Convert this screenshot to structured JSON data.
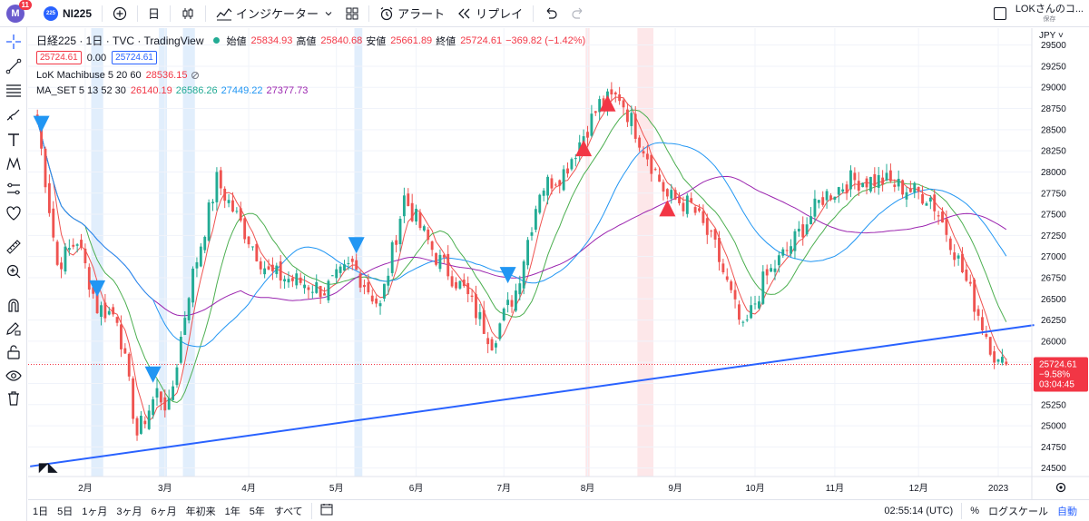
{
  "topbar": {
    "avatar_letter": "M",
    "notification_count": "11",
    "symbol_logo": "225",
    "symbol": "NI225",
    "interval": "日",
    "indicators_label": "インジケーター",
    "alert_label": "アラート",
    "replay_label": "リプレイ",
    "layout_name": "LOKさんのコ...",
    "layout_save": "保存"
  },
  "legend": {
    "title": "日経225 · 1日 · TVC · TradingView",
    "open_label": "始値",
    "open": "25834.93",
    "high_label": "高値",
    "high": "25840.68",
    "low_label": "安値",
    "low": "25661.89",
    "close_label": "終値",
    "close": "25724.61",
    "change": "−369.82 (−1.42%)",
    "bid": "25724.61",
    "spread": "0.00",
    "ask": "25724.61",
    "ind1_name": "LoK Machibuse 5 20 60",
    "ind1_value": "28536.15",
    "ind2_name": "MA_SET 5 13 52 30",
    "ind2_values": [
      "26140.19",
      "26586.26",
      "27449.22",
      "27377.73"
    ]
  },
  "bottombar": {
    "ranges": [
      "1日",
      "5日",
      "1ヶ月",
      "3ヶ月",
      "6ヶ月",
      "年初来",
      "1年",
      "5年",
      "すべて"
    ],
    "time": "02:55:14 (UTC)",
    "pct": "%",
    "log": "ログスケール",
    "auto": "自動"
  },
  "chart_data": {
    "type": "candlestick",
    "symbol": "日経225",
    "interval": "1日",
    "currency": "JPY",
    "ylim": [
      24400,
      29700
    ],
    "y_ticks": [
      24500,
      24750,
      25000,
      25250,
      25500,
      25750,
      26000,
      26250,
      26500,
      26750,
      27000,
      27250,
      27500,
      27750,
      28000,
      28250,
      28500,
      28750,
      29000,
      29250,
      29500
    ],
    "x_ticks": [
      "2月",
      "3月",
      "4月",
      "5月",
      "6月",
      "7月",
      "8月",
      "9月",
      "10月",
      "11月",
      "12月",
      "2023"
    ],
    "x_tick_index": [
      12,
      32,
      53,
      75,
      95,
      117,
      138,
      160,
      180,
      200,
      221,
      241
    ],
    "last_price": 25724.61,
    "last_change": "−9.58%",
    "countdown": "03:04:45",
    "colors": {
      "up": "#22ab94",
      "down": "#ef5350",
      "ma5": "#ef5350",
      "ma13": "#4caf50",
      "ma52": "#9c27b0",
      "ma30": "#2196f3",
      "trend": "#2962ff"
    },
    "ohlc_monthly_path": [
      [
        0,
        28600
      ],
      [
        5,
        26900
      ],
      [
        10,
        27200
      ],
      [
        15,
        26400
      ],
      [
        20,
        26300
      ],
      [
        25,
        24900
      ],
      [
        30,
        25400
      ],
      [
        33,
        25200
      ],
      [
        38,
        26600
      ],
      [
        45,
        27900
      ],
      [
        52,
        27300
      ],
      [
        58,
        26800
      ],
      [
        66,
        26700
      ],
      [
        72,
        26600
      ],
      [
        79,
        26900
      ],
      [
        86,
        26400
      ],
      [
        92,
        27700
      ],
      [
        100,
        27000
      ],
      [
        107,
        26600
      ],
      [
        114,
        26000
      ],
      [
        120,
        26600
      ],
      [
        126,
        27800
      ],
      [
        132,
        28000
      ],
      [
        141,
        28800
      ],
      [
        146,
        28900
      ],
      [
        150,
        28500
      ],
      [
        158,
        27700
      ],
      [
        164,
        27600
      ],
      [
        170,
        27100
      ],
      [
        177,
        26100
      ],
      [
        182,
        26700
      ],
      [
        190,
        27200
      ],
      [
        197,
        27700
      ],
      [
        204,
        27900
      ],
      [
        212,
        27900
      ],
      [
        218,
        27800
      ],
      [
        224,
        27700
      ],
      [
        229,
        27200
      ],
      [
        233,
        26700
      ],
      [
        237,
        26200
      ],
      [
        241,
        25724
      ]
    ],
    "ma_series": [
      {
        "name": "5",
        "value": 26140.19
      },
      {
        "name": "13",
        "value": 26586.26
      },
      {
        "name": "52",
        "value": 27449.22
      },
      {
        "name": "30",
        "value": 27377.73
      }
    ],
    "signals": [
      {
        "type": "sell",
        "index": 1
      },
      {
        "type": "sell",
        "index": 15
      },
      {
        "type": "sell",
        "index": 29
      },
      {
        "type": "sell",
        "index": 80
      },
      {
        "type": "sell",
        "index": 118
      },
      {
        "type": "buy",
        "index": 137
      },
      {
        "type": "buy",
        "index": 143
      },
      {
        "type": "buy",
        "index": 158
      }
    ],
    "highlight_bands": [
      {
        "start": 14,
        "end": 16,
        "color": "blue"
      },
      {
        "start": 31,
        "end": 32,
        "color": "blue"
      },
      {
        "start": 37,
        "end": 39,
        "color": "blue"
      },
      {
        "start": 80,
        "end": 81,
        "color": "blue"
      },
      {
        "start": 138,
        "end": 138,
        "color": "red"
      },
      {
        "start": 151,
        "end": 154,
        "color": "red"
      }
    ],
    "trendline": [
      [
        0,
        24520
      ],
      [
        250,
        26190
      ]
    ]
  }
}
